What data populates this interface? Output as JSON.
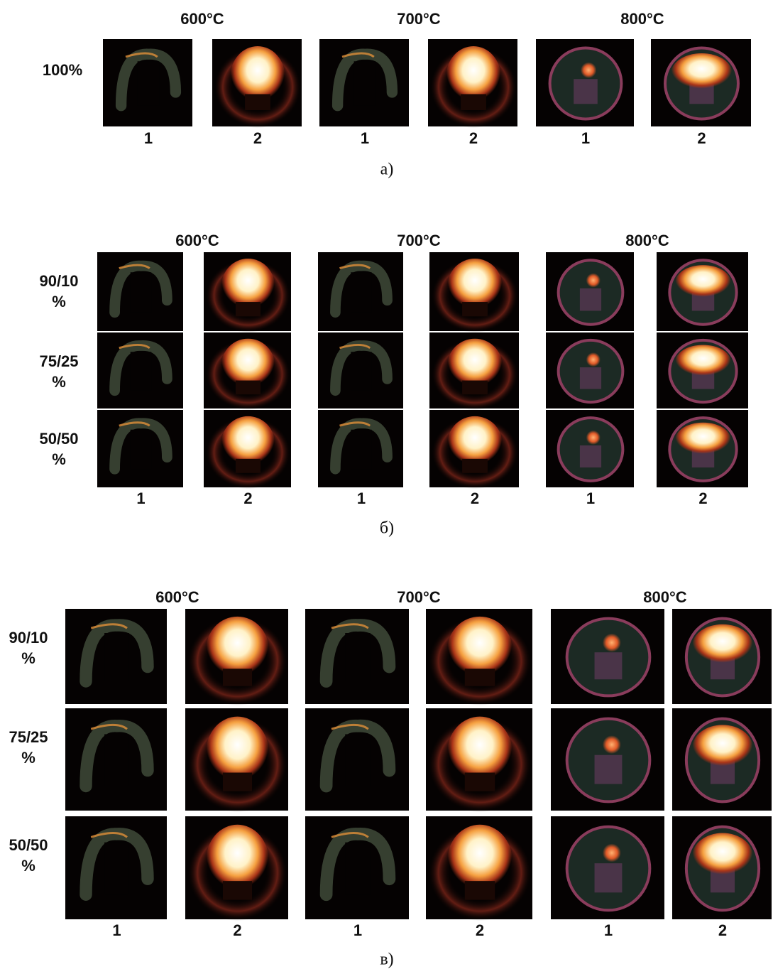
{
  "panels": [
    {
      "temperatures": [
        "600°C",
        "700°C",
        "800°C"
      ],
      "rows": [
        [
          "100%"
        ]
      ],
      "columns": [
        "1",
        "2",
        "1",
        "2",
        "1",
        "2"
      ],
      "caption": "а)"
    },
    {
      "temperatures": [
        "600°C",
        "700°C",
        "800°C"
      ],
      "rows": [
        [
          "90/10",
          "%"
        ],
        [
          "75/25",
          "%"
        ],
        [
          "50/50",
          "%"
        ]
      ],
      "columns": [
        "1",
        "2",
        "1",
        "2",
        "1",
        "2"
      ],
      "caption": "б)"
    },
    {
      "temperatures": [
        "600°C",
        "700°C",
        "800°C"
      ],
      "rows": [
        [
          "90/10",
          "%"
        ],
        [
          "75/25",
          "%"
        ],
        [
          "50/50",
          "%"
        ]
      ],
      "columns": [
        "1",
        "2",
        "1",
        "2",
        "1",
        "2"
      ],
      "caption": "в)"
    }
  ]
}
